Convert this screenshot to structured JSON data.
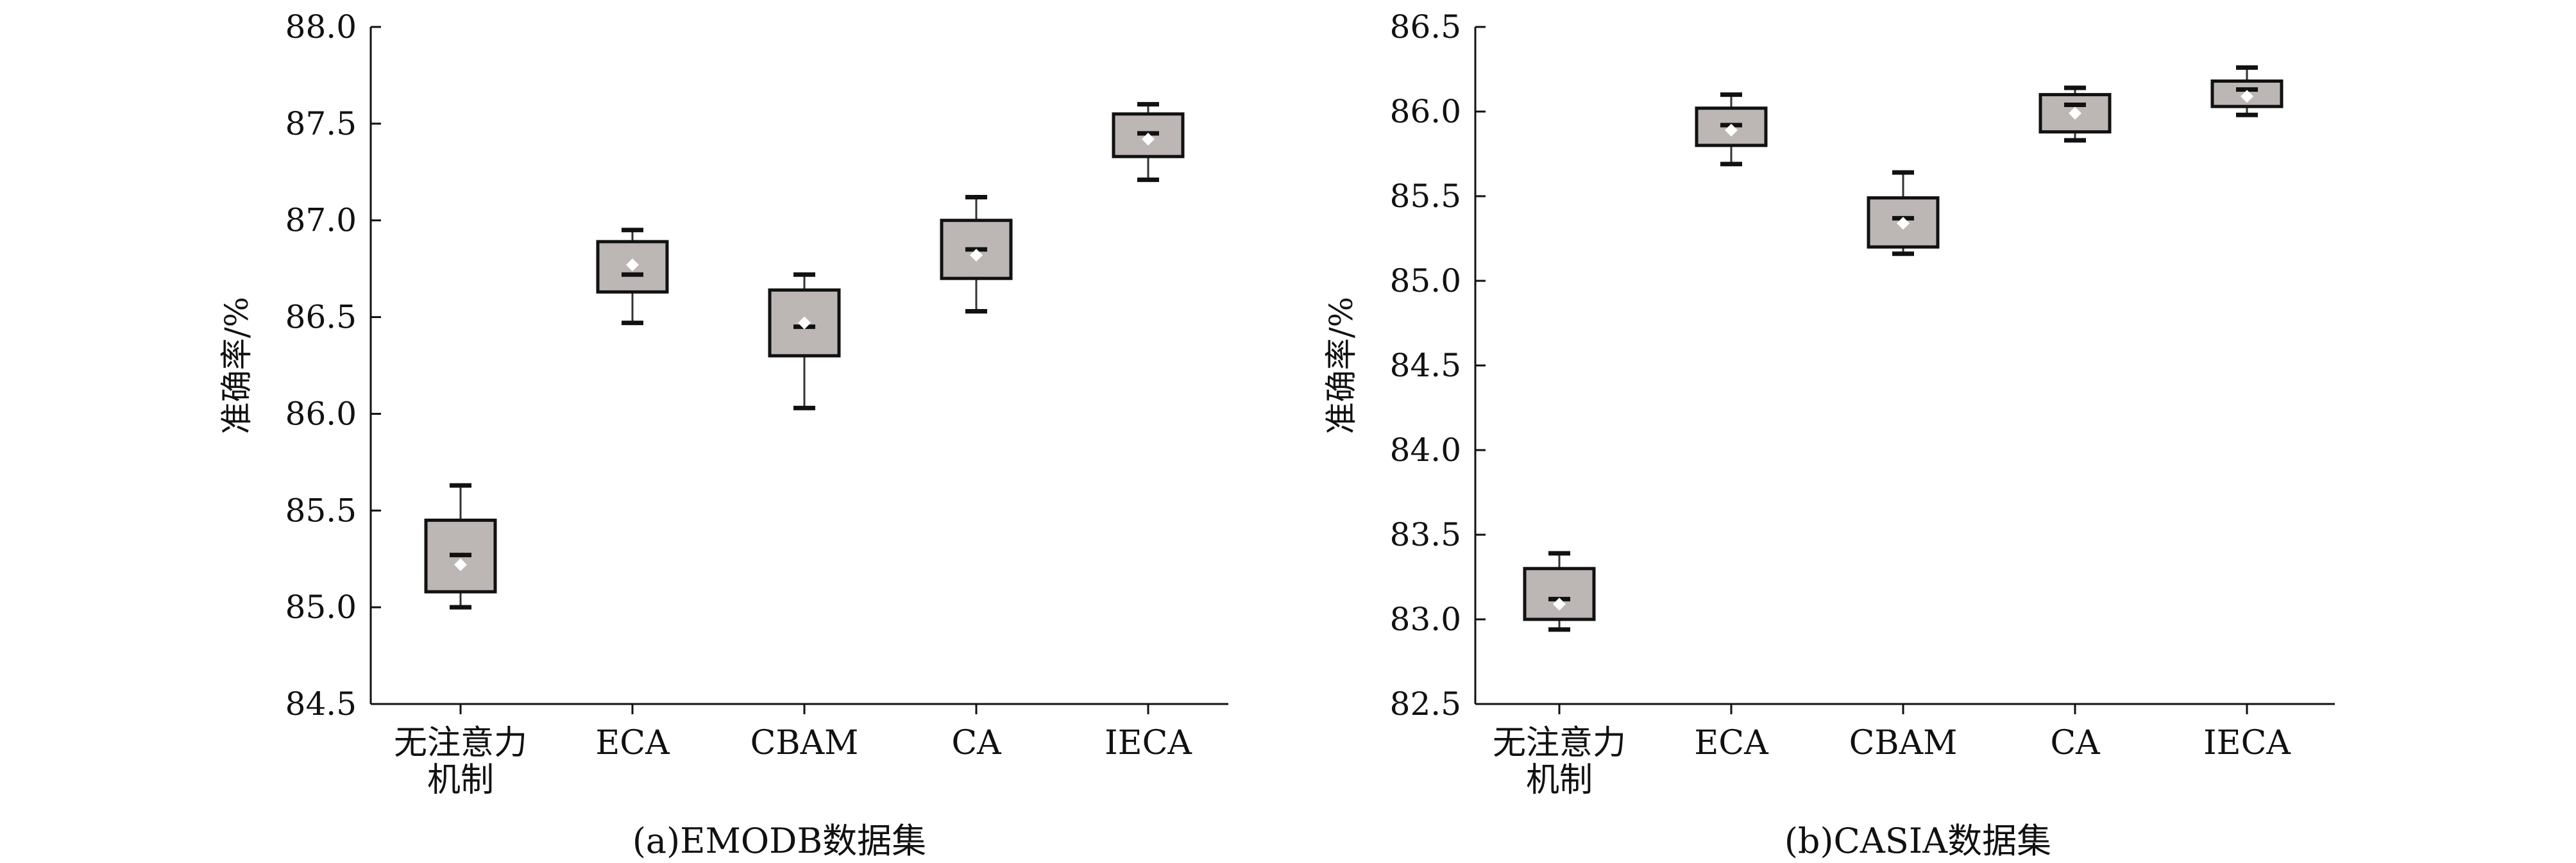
{
  "colors": {
    "box_fill": "#bcb6b4",
    "box_stroke": "#111111",
    "mean_marker": "#ffffff",
    "text": "#111111"
  },
  "chart_data": [
    {
      "type": "box",
      "caption": "(a)EMODB数据集",
      "ylabel": "准确率/%",
      "ylim": [
        84.5,
        88.0
      ],
      "yticks": [
        "84.5",
        "85.0",
        "85.5",
        "86.0",
        "86.5",
        "87.0",
        "87.5",
        "88.0"
      ],
      "grid": false,
      "categories": [
        {
          "label_lines": [
            "无注意力",
            "机制"
          ],
          "min": 85.0,
          "q1": 85.08,
          "median": 85.27,
          "mean": 85.22,
          "q3": 85.45,
          "max": 85.63
        },
        {
          "label_lines": [
            "ECA"
          ],
          "min": 86.47,
          "q1": 86.63,
          "median": 86.72,
          "mean": 86.77,
          "q3": 86.89,
          "max": 86.95
        },
        {
          "label_lines": [
            "CBAM"
          ],
          "min": 86.03,
          "q1": 86.3,
          "median": 86.45,
          "mean": 86.47,
          "q3": 86.64,
          "max": 86.72
        },
        {
          "label_lines": [
            "CA"
          ],
          "min": 86.53,
          "q1": 86.7,
          "median": 86.85,
          "mean": 86.82,
          "q3": 87.0,
          "max": 87.12
        },
        {
          "label_lines": [
            "IECA"
          ],
          "min": 87.21,
          "q1": 87.33,
          "median": 87.45,
          "mean": 87.42,
          "q3": 87.55,
          "max": 87.6
        }
      ]
    },
    {
      "type": "box",
      "caption": "(b)CASIA数据集",
      "ylabel": "准确率/%",
      "ylim": [
        82.5,
        86.5
      ],
      "yticks": [
        "82.5",
        "83.0",
        "83.5",
        "84.0",
        "84.5",
        "85.0",
        "85.5",
        "86.0",
        "86.5"
      ],
      "grid": false,
      "categories": [
        {
          "label_lines": [
            "无注意力",
            "机制"
          ],
          "min": 82.94,
          "q1": 83.0,
          "median": 83.12,
          "mean": 83.09,
          "q3": 83.3,
          "max": 83.39
        },
        {
          "label_lines": [
            "ECA"
          ],
          "min": 85.69,
          "q1": 85.8,
          "median": 85.92,
          "mean": 85.89,
          "q3": 86.02,
          "max": 86.1
        },
        {
          "label_lines": [
            "CBAM"
          ],
          "min": 85.16,
          "q1": 85.2,
          "median": 85.37,
          "mean": 85.34,
          "q3": 85.49,
          "max": 85.64
        },
        {
          "label_lines": [
            "CA"
          ],
          "min": 85.83,
          "q1": 85.88,
          "median": 86.04,
          "mean": 85.99,
          "q3": 86.1,
          "max": 86.14
        },
        {
          "label_lines": [
            "IECA"
          ],
          "min": 85.98,
          "q1": 86.03,
          "median": 86.13,
          "mean": 86.09,
          "q3": 86.18,
          "max": 86.26
        }
      ]
    }
  ]
}
